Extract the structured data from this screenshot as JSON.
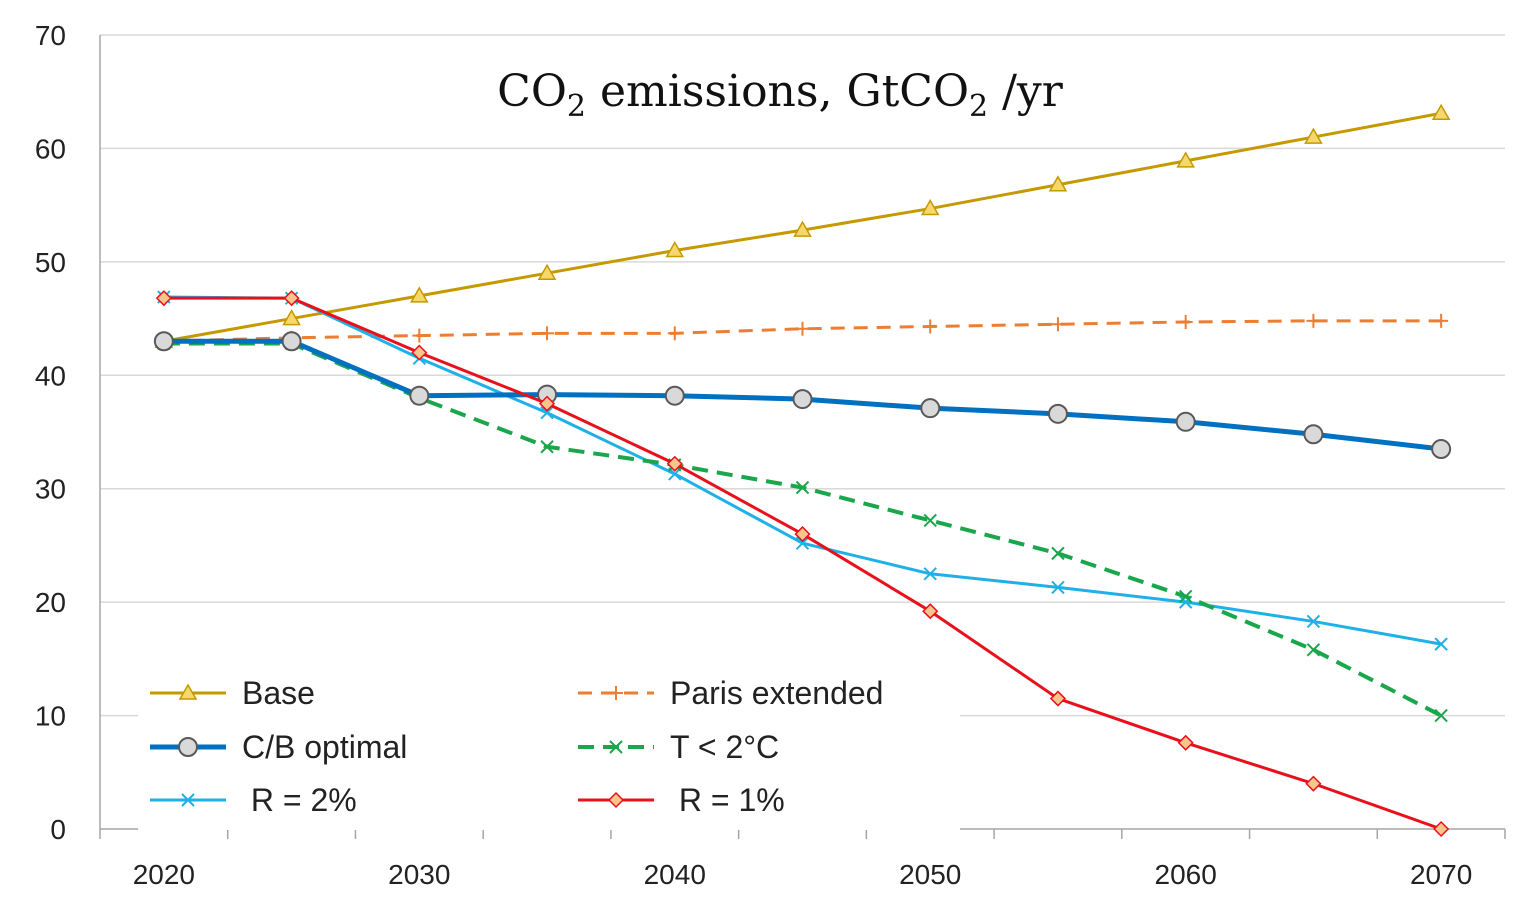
{
  "chart_data": {
    "type": "line",
    "title": {
      "parts": [
        {
          "text": "CO",
          "sub": false
        },
        {
          "text": "2",
          "sub": true
        },
        {
          "text": " emissions, GtCO",
          "sub": false
        },
        {
          "text": "2",
          "sub": true
        },
        {
          "text": " /yr",
          "sub": false
        }
      ]
    },
    "xlabel": "",
    "ylabel": "",
    "x": [
      2020,
      2025,
      2030,
      2035,
      2040,
      2045,
      2050,
      2055,
      2060,
      2065,
      2070
    ],
    "xlim": [
      2017.5,
      2072.5
    ],
    "ylim": [
      0,
      70
    ],
    "x_ticks": [
      2020,
      2030,
      2040,
      2050,
      2060,
      2070
    ],
    "x_tick_labels": [
      "2020",
      "2030",
      "2040",
      "2050",
      "2060",
      "2070"
    ],
    "y_ticks": [
      0,
      10,
      20,
      30,
      40,
      50,
      60,
      70
    ],
    "y_tick_labels": [
      "0",
      "10",
      "20",
      "30",
      "40",
      "50",
      "60",
      "70"
    ],
    "grid": "horizontal",
    "legend_position": "bottom-left",
    "series": [
      {
        "name": "Base",
        "color": "#c49a00",
        "marker": "triangle",
        "dash": "solid",
        "width": 3,
        "values": [
          43,
          45,
          47,
          49,
          51,
          52.8,
          54.7,
          56.8,
          58.9,
          61,
          63.1
        ]
      },
      {
        "name": "Paris extended",
        "color": "#ed7d31",
        "marker": "plus",
        "dash": "dashed",
        "width": 3,
        "values": [
          43,
          43.3,
          43.5,
          43.7,
          43.7,
          44.1,
          44.3,
          44.5,
          44.7,
          44.8,
          44.8
        ]
      },
      {
        "name": "C/B optimal",
        "color": "#0070c0",
        "marker": "circle",
        "dash": "solid",
        "width": 5,
        "values": [
          43,
          43,
          38.2,
          38.3,
          38.2,
          37.9,
          37.1,
          36.6,
          35.9,
          34.8,
          33.5
        ]
      },
      {
        "name": "T < 2°C",
        "color": "#1aa64b",
        "marker": "x",
        "dash": "dashed",
        "width": 4,
        "values": [
          42.8,
          42.8,
          38,
          33.7,
          32.1,
          30.1,
          27.2,
          24.3,
          20.5,
          15.8,
          10
        ]
      },
      {
        "name": " R = 2%",
        "color": "#1fb0e8",
        "marker": "x",
        "dash": "solid",
        "width": 3,
        "values": [
          46.9,
          46.8,
          41.5,
          36.7,
          31.3,
          25.2,
          22.5,
          21.3,
          20,
          18.3,
          16.3
        ]
      },
      {
        "name": " R = 1%",
        "color": "#e8101a",
        "marker": "diamond",
        "dash": "solid",
        "width": 3,
        "values": [
          46.8,
          46.8,
          42,
          37.5,
          32.2,
          26,
          19.2,
          11.5,
          7.6,
          4,
          0
        ]
      }
    ],
    "legend_order": [
      "Base",
      "Paris extended",
      "C/B optimal",
      "T < 2°C",
      " R = 2%",
      " R = 1%"
    ],
    "axis_color": "#a6a6a6",
    "grid_color": "#d9d9d9"
  }
}
